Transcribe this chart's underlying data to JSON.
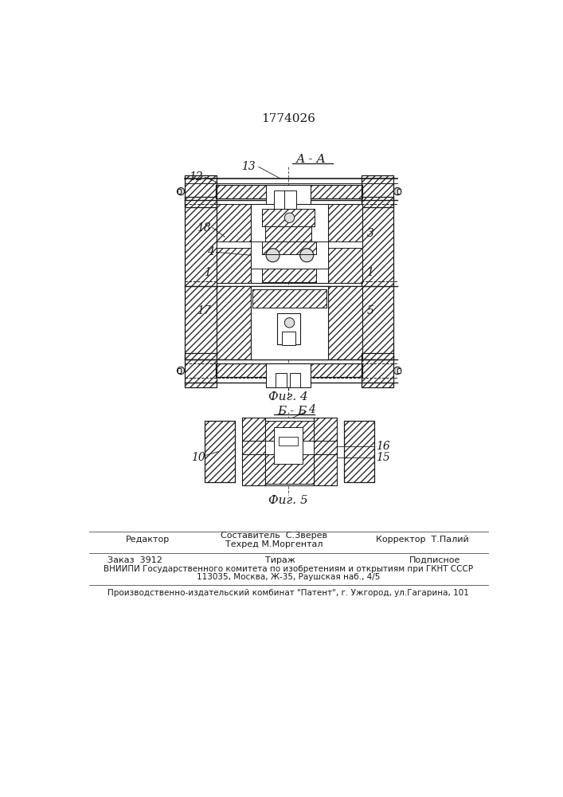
{
  "patent_number": "1774026",
  "fig4_label": "А - А",
  "fig4_caption": "Фиг. 4",
  "fig5_label": "Б - Б",
  "fig5_caption": "Фиг. 5",
  "footer_line1_left": "Редактор",
  "footer_line1_center1": "Составитель  С.Зверев",
  "footer_line1_center2": "Техред М.Моргентал",
  "footer_line1_right": "Корректор  Т.Палий",
  "footer_line2_left": "Заказ  3912",
  "footer_line2_center": "Тираж",
  "footer_line2_right": "Подписное",
  "footer_line3": "ВНИИПИ Государственного комитета по изобретениям и открытиям при ГКНТ СССР",
  "footer_line4": "113035, Москва, Ж-35, Раушская наб., 4/5",
  "footer_line5": "Производственно-издательский комбинат \"Патент\", г. Ужгород, ул.Гагарина, 101",
  "bg_color": "#ffffff",
  "hatch_color": "#2a2a2a",
  "line_color": "#1a1a1a"
}
